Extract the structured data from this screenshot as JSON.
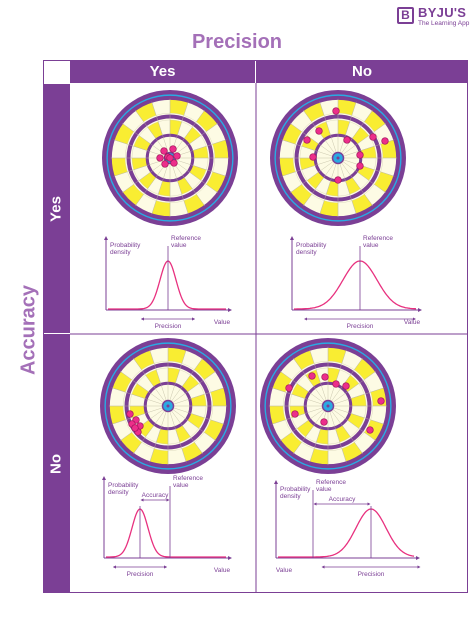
{
  "logo": {
    "mark": "B",
    "name": "BYJU'S",
    "tagline": "The Learning App"
  },
  "title": "Precision",
  "vertical_title": "Accuracy",
  "columns": [
    "Yes",
    "No"
  ],
  "rows": [
    "Yes",
    "No"
  ],
  "colors": {
    "purple": "#7b3f95",
    "light_purple": "#a470b8",
    "yellow": "#f9ed32",
    "cream": "#fdfbe4",
    "blue": "#29aae2",
    "dot": "#ec2e8a",
    "curve": "#e8317f"
  },
  "labels": {
    "probability_density": [
      "Probability",
      "density"
    ],
    "reference_value": [
      "Reference",
      "value"
    ],
    "precision": "Precision",
    "value": "Value",
    "accuracy": "Accuracy"
  }
}
